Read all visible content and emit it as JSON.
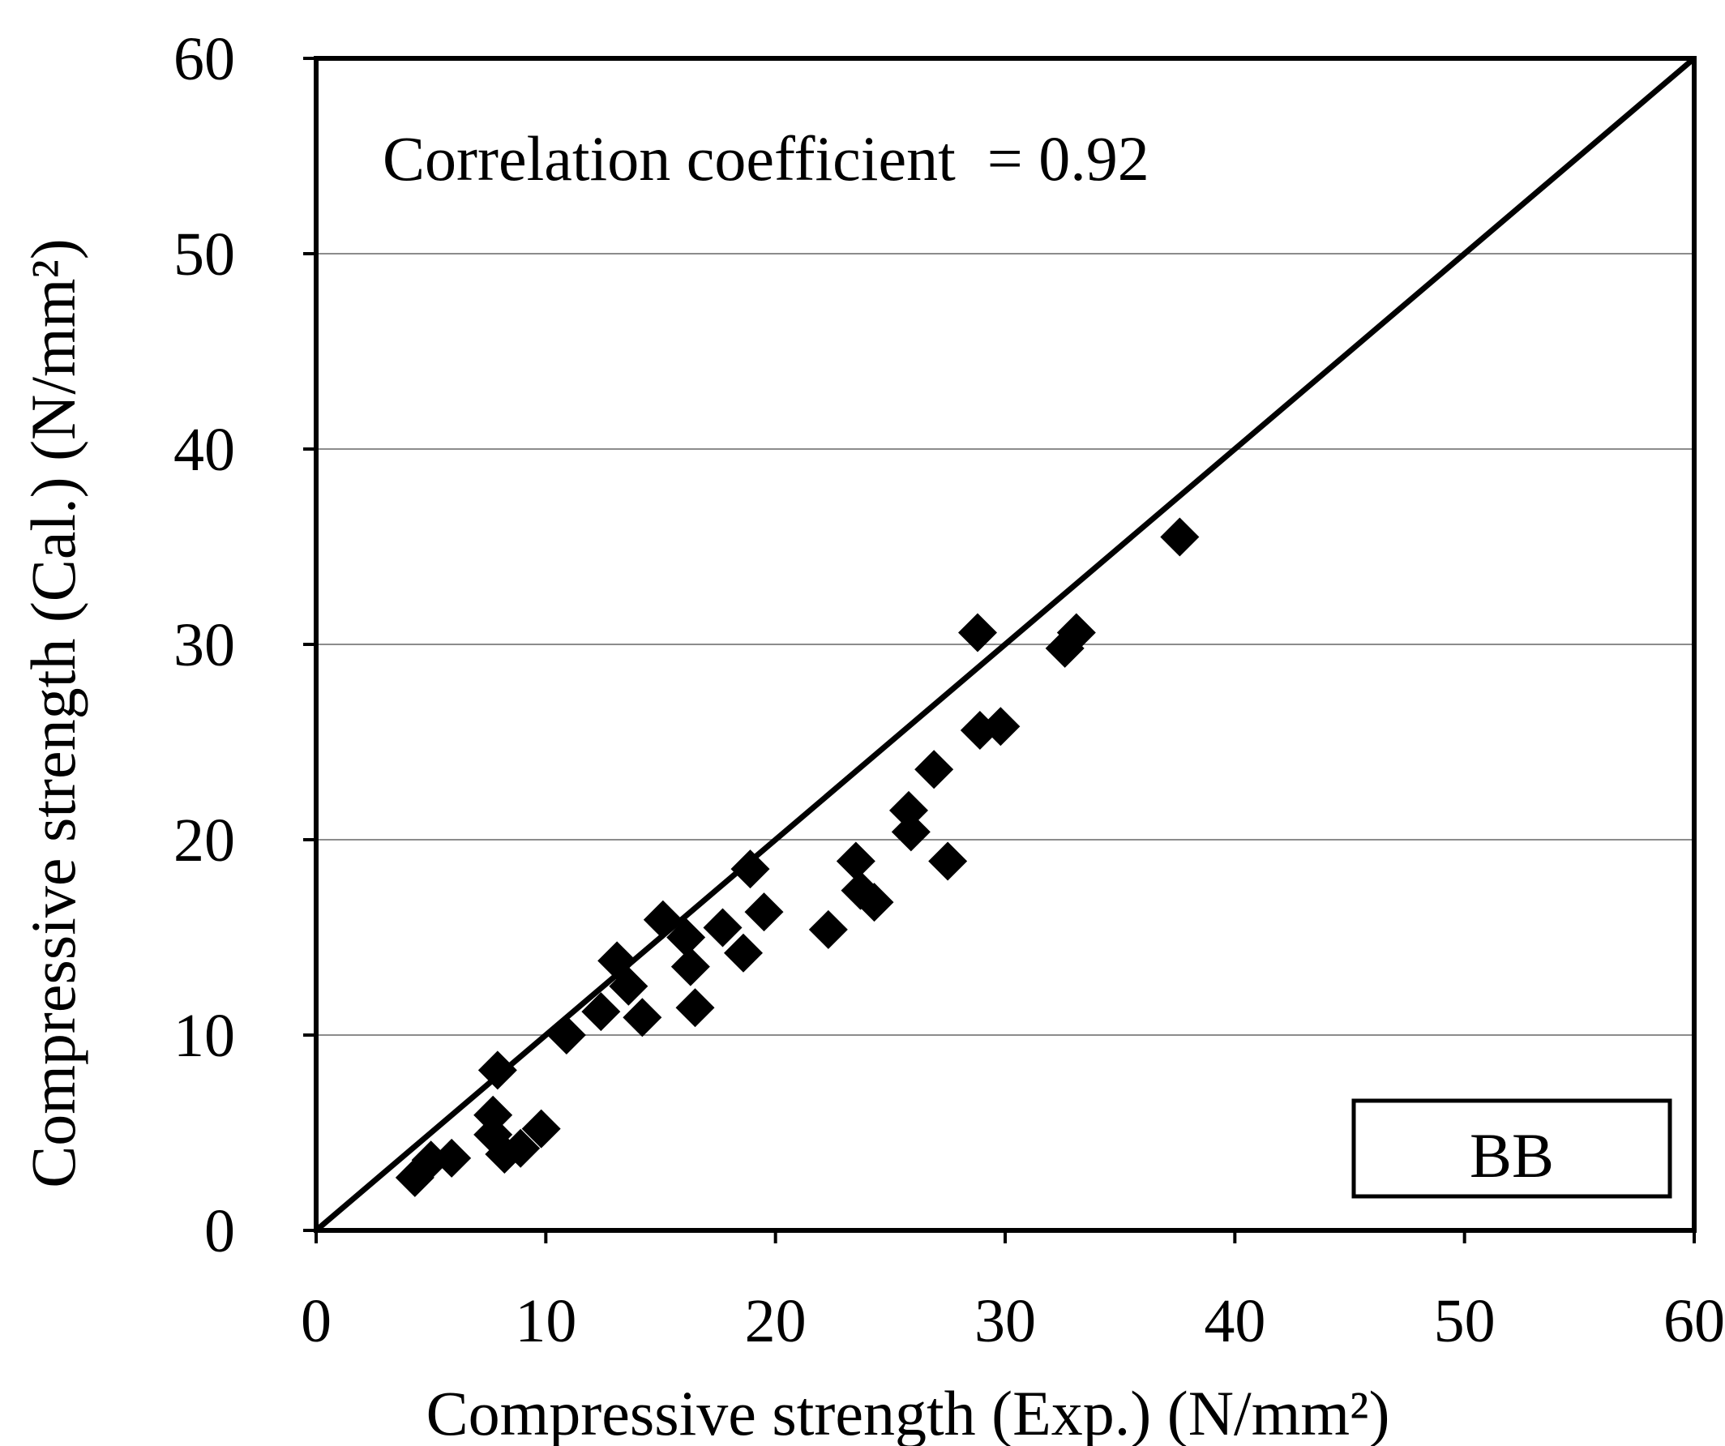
{
  "chart_data": {
    "type": "scatter",
    "title": "",
    "xlabel": "Compressive strength (Exp.) (N/mm²)",
    "ylabel": "Compressive strength (Cal.) (N/mm²)",
    "xlim": [
      0,
      60
    ],
    "ylim": [
      0,
      60
    ],
    "xticks": [
      "0",
      "10",
      "20",
      "30",
      "40",
      "50",
      "60"
    ],
    "yticks": [
      "0",
      "10",
      "20",
      "30",
      "40",
      "50",
      "60"
    ],
    "grid": "horizontal",
    "annotation": "Correlation coefficient  = 0.92",
    "legend_box": "BB",
    "reference_line": {
      "name": "y = x",
      "x": [
        0,
        60
      ],
      "y": [
        0,
        60
      ]
    },
    "series": [
      {
        "name": "BB",
        "marker": "diamond",
        "color": "#000000",
        "points": [
          [
            4.3,
            2.7
          ],
          [
            5.0,
            3.6
          ],
          [
            5.9,
            3.7
          ],
          [
            7.7,
            4.9
          ],
          [
            7.7,
            5.9
          ],
          [
            8.2,
            3.9
          ],
          [
            8.9,
            4.2
          ],
          [
            7.9,
            8.2
          ],
          [
            9.8,
            5.2
          ],
          [
            10.9,
            10.0
          ],
          [
            12.4,
            11.2
          ],
          [
            13.1,
            13.8
          ],
          [
            13.6,
            12.5
          ],
          [
            14.2,
            10.9
          ],
          [
            15.1,
            15.9
          ],
          [
            16.1,
            15.0
          ],
          [
            16.3,
            13.5
          ],
          [
            16.5,
            11.4
          ],
          [
            17.7,
            15.5
          ],
          [
            18.6,
            14.2
          ],
          [
            18.9,
            18.5
          ],
          [
            19.5,
            16.3
          ],
          [
            22.3,
            15.4
          ],
          [
            23.5,
            18.9
          ],
          [
            23.7,
            17.4
          ],
          [
            24.3,
            16.8
          ],
          [
            25.8,
            21.5
          ],
          [
            25.9,
            20.4
          ],
          [
            26.9,
            23.6
          ],
          [
            27.5,
            18.9
          ],
          [
            28.8,
            30.6
          ],
          [
            28.9,
            25.6
          ],
          [
            29.8,
            25.8
          ],
          [
            32.6,
            29.8
          ],
          [
            33.1,
            30.6
          ],
          [
            37.6,
            35.5
          ]
        ]
      }
    ]
  }
}
